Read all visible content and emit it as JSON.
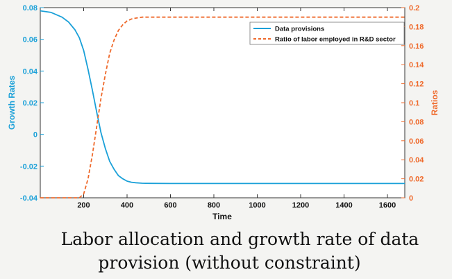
{
  "chart_data": {
    "type": "line",
    "xlabel": "Time",
    "ylabel_left": "Growth Rates",
    "ylabel_right": "Ratios",
    "xlim": [
      0,
      1680
    ],
    "ylim_left": [
      -0.04,
      0.08
    ],
    "ylim_right": [
      0,
      0.2
    ],
    "x_ticks": [
      200,
      400,
      600,
      800,
      1000,
      1200,
      1400,
      1600
    ],
    "y_left_ticks": [
      -0.04,
      -0.02,
      0,
      0.02,
      0.04,
      0.06,
      0.08
    ],
    "y_left_tick_labels": [
      "-0.04",
      "-0.02",
      "0",
      "0.02",
      "0.04",
      "0.06",
      "0.08"
    ],
    "y_right_ticks": [
      0,
      0.02,
      0.04,
      0.06,
      0.08,
      0.1,
      0.12,
      0.14,
      0.16,
      0.18,
      0.2
    ],
    "y_right_tick_labels": [
      "0",
      "0.02",
      "0.04",
      "0.06",
      "0.08",
      "0.1",
      "0.12",
      "0.14",
      "0.16",
      "0.18",
      "0.2"
    ],
    "legend_position": "top-right",
    "grid": false,
    "series": [
      {
        "name": "Data provisions",
        "axis": "left",
        "style": "solid",
        "color": "#1aa0d8",
        "x": [
          0,
          50,
          100,
          130,
          160,
          180,
          200,
          220,
          240,
          260,
          280,
          300,
          320,
          340,
          360,
          380,
          400,
          420,
          440,
          470,
          500,
          600,
          800,
          1000,
          1200,
          1400,
          1600,
          1680
        ],
        "y": [
          0.078,
          0.077,
          0.074,
          0.071,
          0.066,
          0.061,
          0.053,
          0.041,
          0.028,
          0.014,
          0.001,
          -0.009,
          -0.017,
          -0.022,
          -0.026,
          -0.028,
          -0.0295,
          -0.0302,
          -0.0305,
          -0.0308,
          -0.0309,
          -0.031,
          -0.031,
          -0.031,
          -0.031,
          -0.031,
          -0.031,
          -0.031
        ]
      },
      {
        "name": "Ratio of labor employed in R&D sector",
        "axis": "right",
        "style": "dashed",
        "color": "#ef6a2c",
        "x": [
          0,
          100,
          180,
          200,
          220,
          240,
          260,
          280,
          300,
          320,
          340,
          360,
          380,
          400,
          420,
          440,
          470,
          500,
          600,
          800,
          1000,
          1200,
          1400,
          1600,
          1680
        ],
        "y": [
          0,
          0,
          0,
          0.004,
          0.02,
          0.045,
          0.075,
          0.105,
          0.13,
          0.152,
          0.166,
          0.176,
          0.182,
          0.186,
          0.188,
          0.189,
          0.19,
          0.19,
          0.19,
          0.19,
          0.19,
          0.19,
          0.19,
          0.19,
          0.19
        ]
      }
    ]
  },
  "caption": {
    "line1": "Labor allocation and growth rate of data",
    "line2": "provision (without constraint)"
  }
}
